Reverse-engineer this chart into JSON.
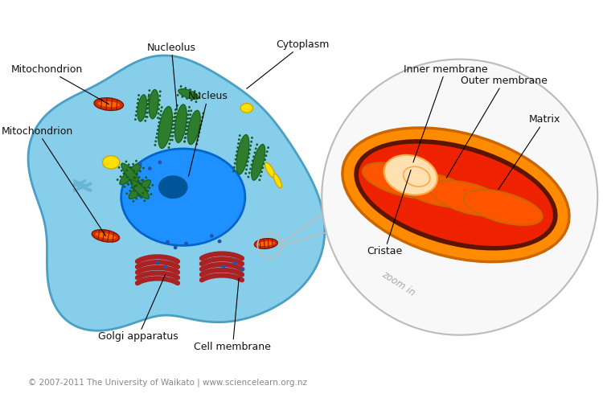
{
  "background_color": "#ffffff",
  "cell_color": "#87CEEB",
  "cell_outline_color": "#4a9fc4",
  "nucleus_color": "#1E90FF",
  "nucleus_dark": "#0066CC",
  "nucleolus_color": "#005599",
  "chloroplast_body": "#2d7d2d",
  "chloroplast_edge": "#1a5c1a",
  "chloroplast_dot": "#1a5c1a",
  "mito_cell_outer": "#cc3300",
  "mito_cell_inner": "#ff6600",
  "mito_cell_highlight": "#ff9944",
  "golgi_color": "#aa2222",
  "yellow_color": "#FFE000",
  "yellow_edge": "#ccaa00",
  "blue_dot": "#2255aa",
  "centriole_color": "#6ab4d4",
  "circle_bg": "#f8f8f8",
  "circle_outline": "#bbbbbb",
  "zoom_text_color": "#aaaaaa",
  "mito_outer_orange": "#FF8C00",
  "mito_outer_dark": "#cc6600",
  "mito_inner_dark": "#5c1500",
  "mito_red": "#ee2200",
  "mito_cristae_orange": "#ff5500",
  "mito_cream": "#ffe0b0",
  "mito_cream_edge": "#ffaa44",
  "ann_color": "#111111",
  "footer_color": "#888888",
  "labels": {
    "nucleolus": "Nucleolus",
    "cytoplasm": "Cytoplasm",
    "nucleus": "Nucleus",
    "mitochondrion_top": "Mitochondrion",
    "mitochondrion_bot": "Mitochondrion",
    "golgi": "Golgi apparatus",
    "cell_membrane": "Cell membrane",
    "inner_membrane": "Inner membrane",
    "outer_membrane": "Outer membrane",
    "matrix": "Matrix",
    "cristae": "Cristae"
  },
  "footer": "© 2007-2011 The University of Waikato | www.sciencelearn.org.nz",
  "zoom_in_text": "zoom in"
}
